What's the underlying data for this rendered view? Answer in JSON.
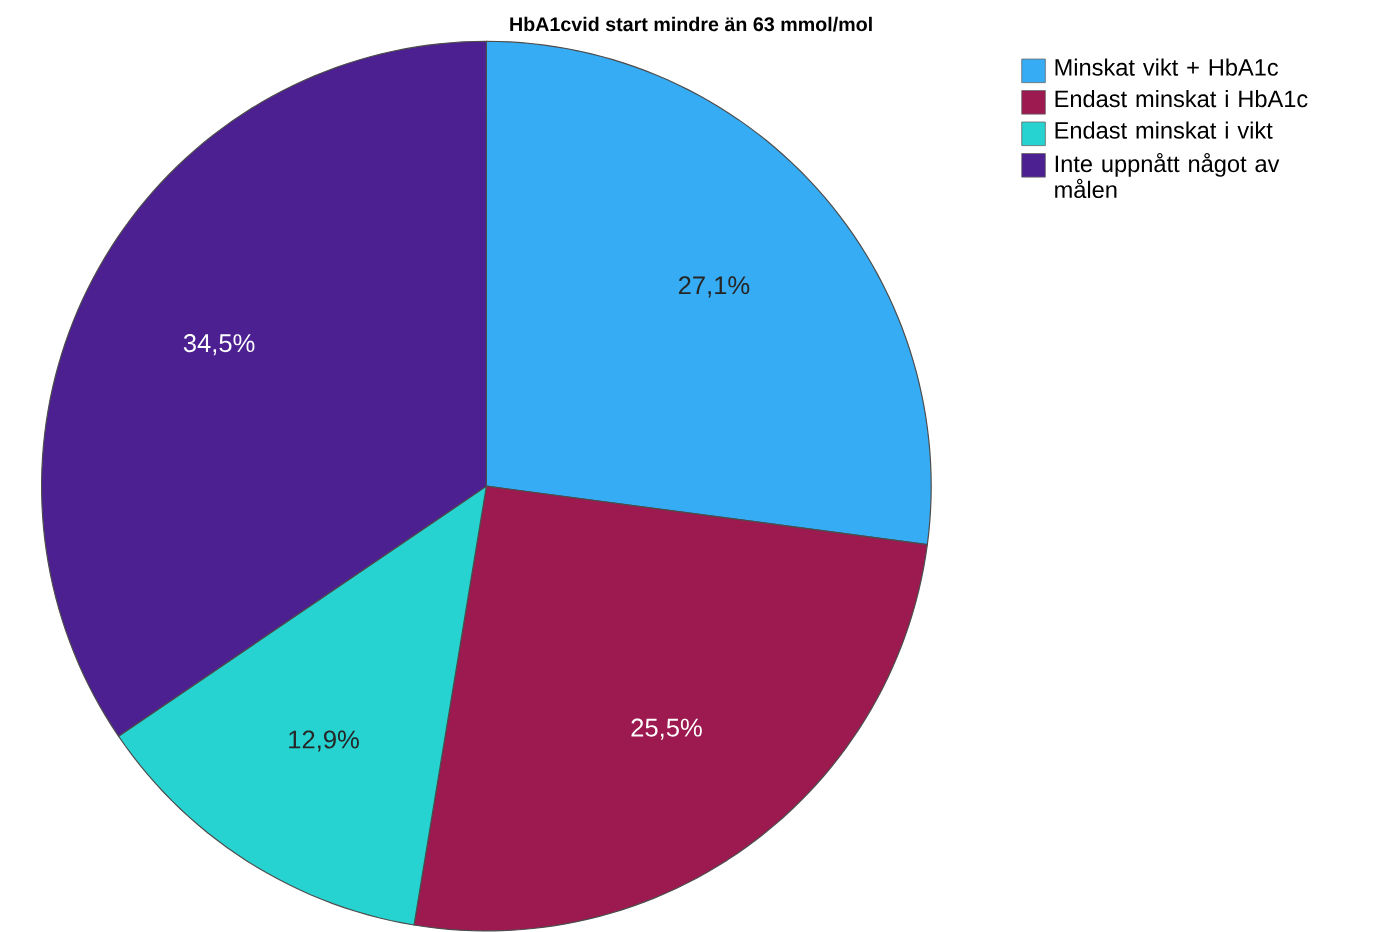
{
  "chart_data": {
    "type": "pie",
    "title": "HbA1cvid start mindre än 63 mmol/mol",
    "categories": [
      "Minskat vikt + HbA1c",
      "Endast minskat i HbA1c",
      "Endast minskat i vikt",
      "Inte uppnått något av målen"
    ],
    "values": [
      27.1,
      25.5,
      12.9,
      34.5
    ],
    "colors": [
      "#36acf4",
      "#9c1a4f",
      "#26d3d0",
      "#4c2090"
    ],
    "value_labels": [
      "27,1%",
      "25,5%",
      "12,9%",
      "34,5%"
    ],
    "legend": "top right"
  }
}
